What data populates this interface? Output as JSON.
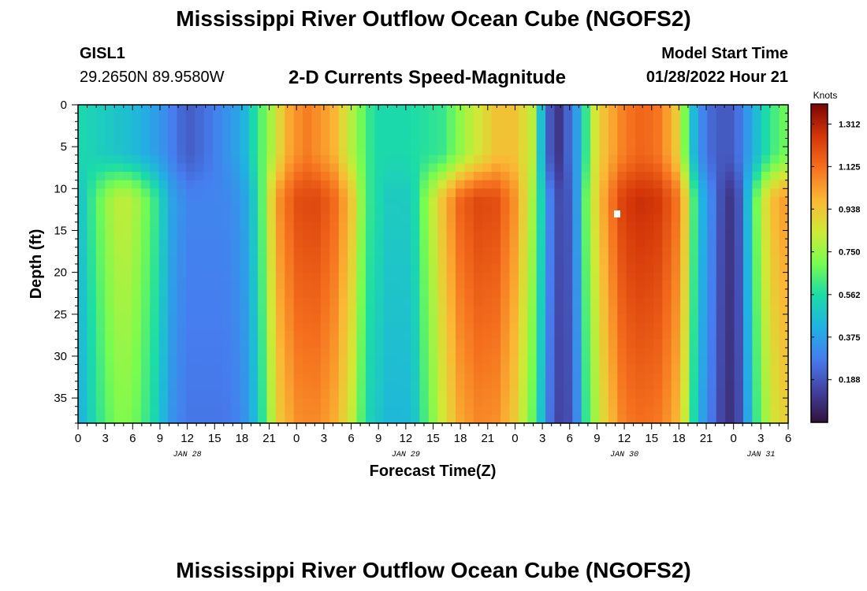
{
  "header": {
    "title": "Mississippi River Outflow Ocean Cube (NGOFS2)",
    "station_id": "GISL1",
    "station_coords": "29.2650N  89.9580W",
    "subtitle": "2-D Currents Speed-Magnitude",
    "model_start_label": "Model Start Time",
    "model_start_value": "01/28/2022 Hour 21"
  },
  "footer": {
    "title": "Mississippi River Outflow Ocean Cube (NGOFS2)"
  },
  "chart_data": {
    "type": "heatmap",
    "xlabel": "Forecast Time(Z)",
    "ylabel": "Depth (ft)",
    "x_unit": "hours since 01/28 00Z",
    "xlim": [
      0,
      78
    ],
    "ylim": [
      0,
      38
    ],
    "x_ticks": [
      0,
      3,
      6,
      9,
      12,
      15,
      18,
      21,
      24,
      27,
      30,
      33,
      36,
      39,
      42,
      45,
      48,
      51,
      54,
      57,
      60,
      63,
      66,
      69,
      72,
      75,
      78
    ],
    "x_tick_labels": [
      "0",
      "3",
      "6",
      "9",
      "12",
      "15",
      "18",
      "21",
      "0",
      "3",
      "6",
      "9",
      "12",
      "15",
      "18",
      "21",
      "0",
      "3",
      "6",
      "9",
      "12",
      "15",
      "18",
      "21",
      "0",
      "3",
      "6"
    ],
    "y_ticks": [
      0,
      5,
      10,
      15,
      20,
      25,
      30,
      35
    ],
    "y_tick_labels": [
      "0",
      "5",
      "10",
      "15",
      "20",
      "25",
      "30",
      "35"
    ],
    "date_labels": [
      {
        "x": 12,
        "text": "JAN 28"
      },
      {
        "x": 36,
        "text": "JAN 29"
      },
      {
        "x": 60,
        "text": "JAN 30"
      },
      {
        "x": 75,
        "text": "JAN 31"
      }
    ],
    "colorbar": {
      "unit": "Knots",
      "min": 0,
      "max": 1.4,
      "ticks": [
        1.312,
        1.125,
        0.938,
        0.75,
        0.562,
        0.375,
        0.188
      ],
      "tick_labels": [
        "1.312",
        "1.125",
        "0.938",
        "0.750",
        "0.562",
        "0.375",
        "0.188"
      ]
    },
    "surface_speed_knots": {
      "x": [
        0,
        3,
        6,
        9,
        11,
        12,
        14,
        18,
        21,
        23,
        25,
        28,
        30,
        32,
        33,
        36,
        40,
        43,
        46,
        48,
        50,
        51,
        52,
        53,
        55,
        57,
        60,
        62,
        64,
        66,
        67,
        68,
        70,
        72,
        74,
        76,
        78
      ],
      "values": [
        0.55,
        0.5,
        0.45,
        0.35,
        0.25,
        0.2,
        0.25,
        0.4,
        0.75,
        1.0,
        1.1,
        1.0,
        0.8,
        0.6,
        0.55,
        0.55,
        0.6,
        0.8,
        0.95,
        0.95,
        0.8,
        0.4,
        0.15,
        0.1,
        0.4,
        0.9,
        1.1,
        1.15,
        1.1,
        0.9,
        0.6,
        0.35,
        0.2,
        0.2,
        0.4,
        0.6,
        0.7
      ]
    },
    "depth_speed_knots": {
      "x": [
        0,
        2,
        4,
        5,
        6,
        8,
        9,
        10,
        12,
        14,
        16,
        18,
        19,
        20,
        21,
        22,
        24,
        26,
        28,
        30,
        31,
        32,
        34,
        36,
        37,
        38,
        40,
        42,
        44,
        46,
        48,
        50,
        51,
        52,
        53,
        54,
        55,
        56,
        58,
        60,
        62,
        64,
        66,
        67,
        68,
        70,
        71,
        72,
        73,
        74,
        76,
        78
      ],
      "values": [
        0.45,
        0.65,
        0.8,
        0.82,
        0.8,
        0.65,
        0.55,
        0.4,
        0.3,
        0.3,
        0.3,
        0.35,
        0.45,
        0.6,
        0.85,
        1.05,
        1.2,
        1.22,
        1.15,
        0.95,
        0.75,
        0.6,
        0.5,
        0.5,
        0.55,
        0.7,
        0.95,
        1.15,
        1.22,
        1.2,
        1.05,
        0.75,
        0.5,
        0.25,
        0.15,
        0.2,
        0.4,
        0.75,
        1.05,
        1.25,
        1.28,
        1.25,
        1.1,
        0.85,
        0.5,
        0.25,
        0.12,
        0.1,
        0.25,
        0.6,
        0.95,
        1.05
      ]
    }
  }
}
